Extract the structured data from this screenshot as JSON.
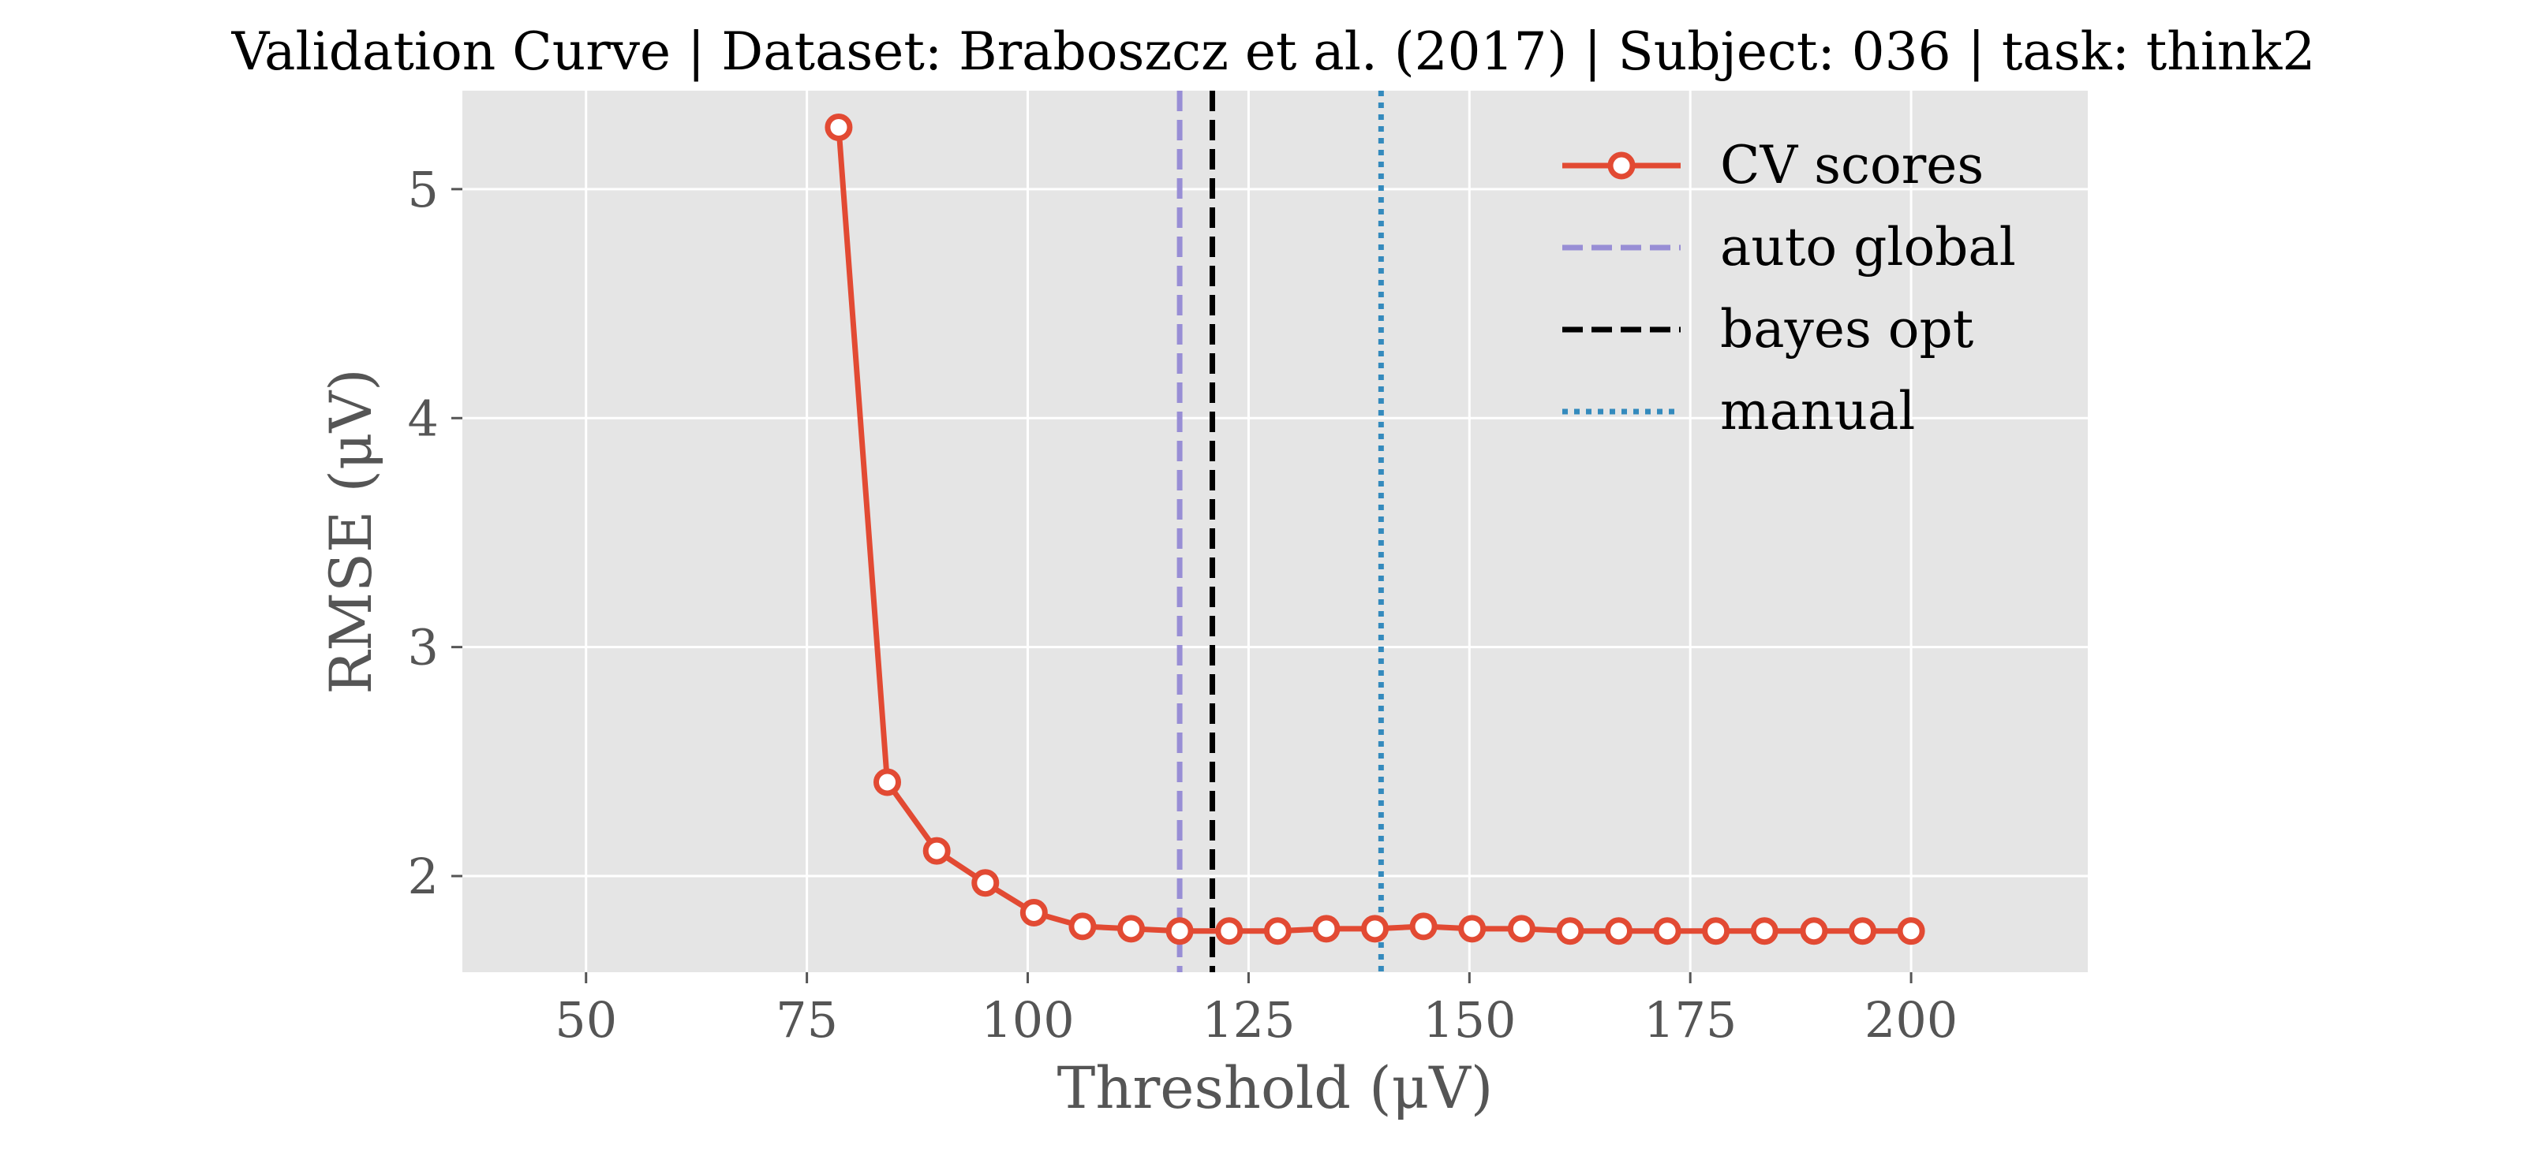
{
  "chart_data": {
    "type": "line",
    "title": "Validation Curve | Dataset: Braboszcz et al. (2017) | Subject: 036 | task: think2",
    "xlabel": "Threshold (μV)",
    "ylabel": "RMSE (μV)",
    "xlim": [
      36,
      220
    ],
    "ylim": [
      1.58,
      5.43
    ],
    "xticks": [
      50,
      75,
      100,
      125,
      150,
      175,
      200
    ],
    "yticks": [
      2,
      3,
      4,
      5
    ],
    "grid": true,
    "legend_position": "top-right",
    "colors": {
      "background": "#e5e5e5",
      "cv_scores": "#e24a33",
      "auto_global": "#988ed5",
      "bayes_opt": "#000000",
      "manual": "#348abd"
    },
    "series": [
      {
        "name": "CV scores",
        "x": [
          78.6,
          84.1,
          89.7,
          95.2,
          100.7,
          106.2,
          111.7,
          117.2,
          122.8,
          128.3,
          133.8,
          139.3,
          144.8,
          150.3,
          155.9,
          161.4,
          166.9,
          172.4,
          177.9,
          183.4,
          189.0,
          194.5,
          200.0
        ],
        "values": [
          5.27,
          2.41,
          2.11,
          1.97,
          1.84,
          1.78,
          1.77,
          1.76,
          1.76,
          1.76,
          1.77,
          1.77,
          1.78,
          1.77,
          1.77,
          1.76,
          1.76,
          1.76,
          1.76,
          1.76,
          1.76,
          1.76,
          1.76
        ]
      }
    ],
    "vlines": [
      {
        "name": "auto global",
        "x": 117.2,
        "style": "dashed"
      },
      {
        "name": "bayes opt",
        "x": 120.9,
        "style": "dashed"
      },
      {
        "name": "manual",
        "x": 140.0,
        "style": "dotted"
      }
    ]
  }
}
